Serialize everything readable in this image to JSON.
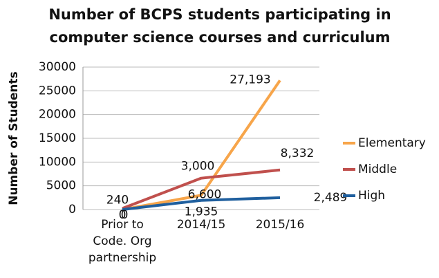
{
  "chart_data": {
    "type": "line",
    "title": [
      "Number of BCPS students participating in",
      "computer science courses and curriculum"
    ],
    "y_label": "Number of Students",
    "categories": [
      [
        "Prior to",
        "Code. Org",
        "partnership"
      ],
      [
        "2014/15"
      ],
      [
        "2015/16"
      ]
    ],
    "series": [
      {
        "name": "Elementary",
        "color": "#f7a54a",
        "values": [
          0,
          3000,
          27193
        ],
        "value_labels": [
          "0",
          "3,000",
          "27,193"
        ]
      },
      {
        "name": "Middle",
        "color": "#c0504d",
        "values": [
          240,
          6600,
          8332
        ],
        "value_labels": [
          "240",
          "6,600",
          "8,332"
        ]
      },
      {
        "name": "High",
        "color": "#1f5f9e",
        "values": [
          0,
          1935,
          2489
        ],
        "value_labels": [
          "0",
          "1,935",
          "2,489"
        ]
      }
    ],
    "ylim": [
      0,
      30000
    ],
    "yticks": [
      0,
      5000,
      10000,
      15000,
      20000,
      25000,
      30000
    ],
    "grid": true,
    "legend": "right"
  }
}
